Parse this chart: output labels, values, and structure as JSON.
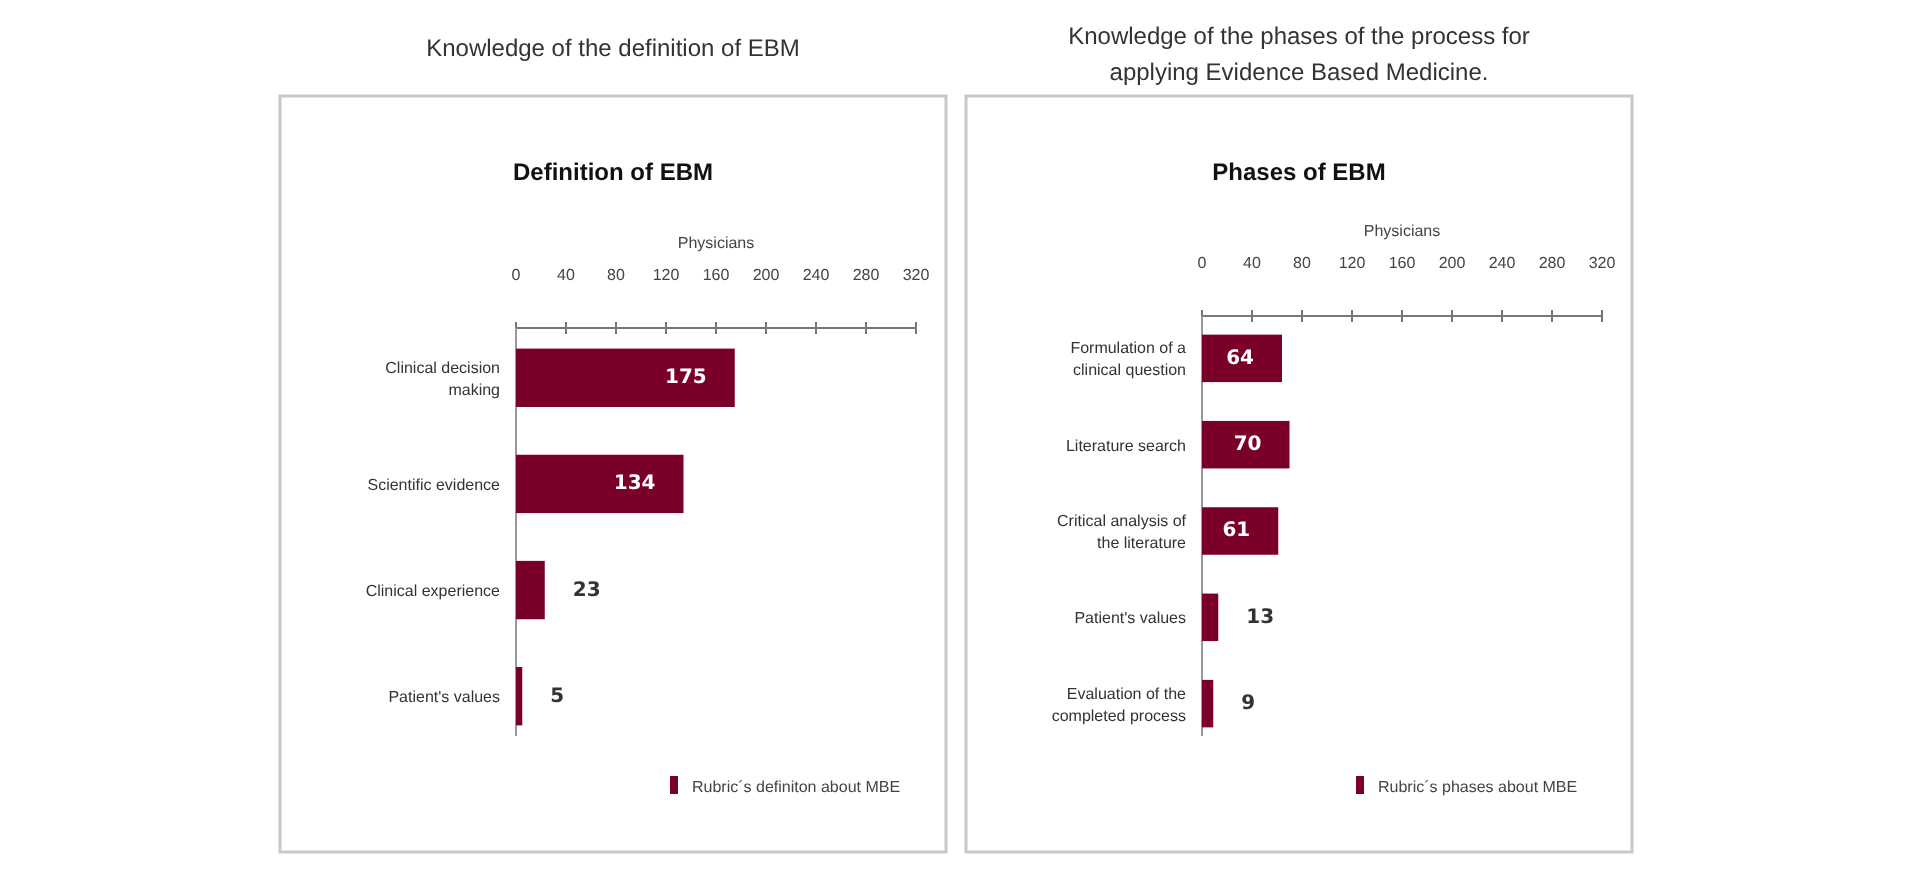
{
  "chart_data": [
    {
      "type": "bar",
      "orientation": "horizontal",
      "title": "Knowledge of the definition of EBM",
      "subtitle": "Definition of EBM",
      "xlabel": "Physicians",
      "categories": [
        "Clinical decision making",
        "Scientific evidence",
        "Clinical experience",
        "Patient's values"
      ],
      "series": [
        {
          "name": "Rubric´s definiton about MBE",
          "color": "#7b0029",
          "values": [
            175,
            134,
            23,
            5
          ]
        }
      ],
      "xlim": [
        0,
        320
      ],
      "xticks": [
        0,
        40,
        80,
        120,
        160,
        200,
        240,
        280,
        320
      ],
      "data_labels": true,
      "legend": "bottom right",
      "grid": false
    },
    {
      "type": "bar",
      "orientation": "horizontal",
      "title": "Knowledge of the phases of the process for applying Evidence Based Medicine.",
      "subtitle": "Phases of EBM",
      "xlabel": "Physicians",
      "categories": [
        "Formulation of a clinical question",
        "Literature search",
        "Critical analysis of the literature",
        "Patient's values",
        "Evaluation of the completed process"
      ],
      "series": [
        {
          "name": "Rubric´s phases about MBE",
          "color": "#7b0029",
          "values": [
            64,
            70,
            61,
            13,
            9
          ]
        }
      ],
      "xlim": [
        0,
        320
      ],
      "xticks": [
        0,
        40,
        80,
        120,
        160,
        200,
        240,
        280,
        320
      ],
      "data_labels": true,
      "legend": "bottom right",
      "grid": false
    }
  ]
}
